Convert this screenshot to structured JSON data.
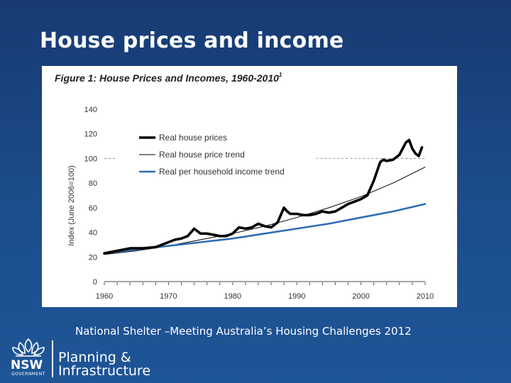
{
  "slide": {
    "title": "House prices and income",
    "caption": "National Shelter –Meeting Australia’s Housing Challenges 2012"
  },
  "logo": {
    "emblem_icon": "waratah-icon",
    "agency_abbrev": "NSW",
    "agency_sub": "GOVERNMENT",
    "line1": "Planning &",
    "line2": "Infrastructure"
  },
  "chart_data": {
    "type": "line",
    "title": "Figure 1: House Prices and Incomes, 1960-2010",
    "title_superscript": "1",
    "xlabel": "",
    "ylabel": "Index (June 2006=100)",
    "xlim": [
      1960,
      2010
    ],
    "ylim": [
      0,
      140
    ],
    "x_ticks": [
      1960,
      1970,
      1980,
      1990,
      2000,
      2010
    ],
    "y_ticks": [
      0,
      20,
      40,
      60,
      80,
      100,
      120,
      140
    ],
    "reference_line": 100,
    "grid": false,
    "legend_position": "top-left",
    "series": [
      {
        "name": "Real house prices",
        "color": "#000000",
        "style": "thick",
        "x": [
          1960,
          1962,
          1964,
          1966,
          1968,
          1970,
          1971,
          1972,
          1973,
          1974,
          1975,
          1976,
          1977,
          1978,
          1979,
          1980,
          1981,
          1982,
          1983,
          1984,
          1985,
          1986,
          1987,
          1988,
          1988.5,
          1989,
          1990,
          1991,
          1992,
          1993,
          1994,
          1995,
          1996,
          1997,
          1998,
          1999,
          2000,
          2001,
          2002,
          2003,
          2003.5,
          2004,
          2005,
          2006,
          2007,
          2007.5,
          2008,
          2008.5,
          2009,
          2009.5
        ],
        "values": [
          23,
          25,
          27,
          27,
          28,
          32,
          34,
          35,
          37,
          43,
          39,
          39,
          38,
          37,
          37,
          39,
          44,
          43,
          44,
          47,
          45,
          44,
          48,
          60,
          57,
          55,
          55,
          54,
          54,
          55,
          57,
          56,
          57,
          60,
          63,
          65,
          67,
          70,
          82,
          97,
          99,
          98,
          99,
          103,
          113,
          115,
          108,
          104,
          102,
          109
        ]
      },
      {
        "name": "Real house price trend",
        "color": "#000000",
        "style": "thin",
        "x": [
          1960,
          1965,
          1970,
          1975,
          1980,
          1985,
          1990,
          1995,
          2000,
          2005,
          2010
        ],
        "values": [
          22,
          25,
          29,
          34,
          39,
          45,
          52,
          60,
          69,
          80,
          93
        ]
      },
      {
        "name": "Real per household income trend",
        "color": "#2f6db5",
        "style": "medium",
        "x": [
          1960,
          1965,
          1970,
          1975,
          1980,
          1985,
          1990,
          1995,
          2000,
          2005,
          2010
        ],
        "values": [
          23,
          26,
          29,
          32,
          35,
          39,
          43,
          47,
          52,
          57,
          63
        ]
      }
    ]
  }
}
